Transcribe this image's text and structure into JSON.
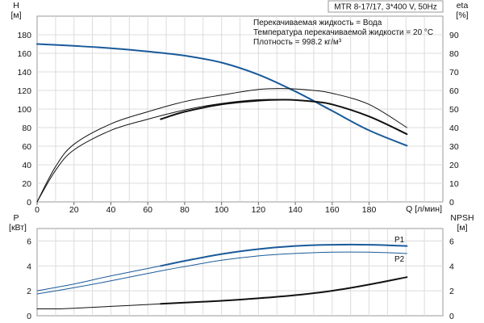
{
  "chart_data": [
    {
      "type": "line",
      "title": "MTR 8-17/17, 3*400 V, 50Hz",
      "notes": [
        "Перекачиваемая жидкость = Вода",
        "Температура перекачиваемой жидкости = 20 °C",
        "Плотность = 998.2 кг/м³"
      ],
      "xlabel": "Q [л/мин]",
      "xlim": [
        0,
        220
      ],
      "xticks": [
        "0",
        "20",
        "40",
        "60",
        "80",
        "100",
        "120",
        "140",
        "160",
        "180"
      ],
      "ylabel_left": [
        "H",
        "[м]"
      ],
      "ylim_left": [
        0,
        200
      ],
      "yticks_left": [
        "0",
        "20",
        "40",
        "60",
        "80",
        "100",
        "120",
        "140",
        "160",
        "180"
      ],
      "ylabel_right": [
        "eta",
        "[%]"
      ],
      "ylim_right": [
        0,
        100
      ],
      "yticks_right": [
        "0",
        "10",
        "20",
        "30",
        "40",
        "50",
        "60",
        "70",
        "80",
        "90"
      ],
      "grid": true,
      "series": [
        {
          "axis": "left",
          "color": "#1a5a9a",
          "width": 2.0,
          "x": [
            0,
            20,
            40,
            60,
            67,
            80,
            100,
            120,
            140,
            160,
            180,
            200.5
          ],
          "y": [
            170,
            168,
            165.5,
            162,
            160.5,
            157.5,
            150,
            137,
            119,
            98,
            77,
            60.5
          ]
        },
        {
          "axis": "right",
          "color": "#111111",
          "width": 2.0,
          "x": [
            67,
            80,
            100,
            120,
            135,
            150,
            160,
            180,
            200.5
          ],
          "y": [
            44.5,
            48.5,
            52.5,
            54.5,
            55,
            54,
            52.5,
            46,
            36.5
          ]
        },
        {
          "axis": "right",
          "color": "#111111",
          "width": 1.0,
          "x": [
            0,
            10,
            20,
            40,
            60,
            80,
            100,
            120,
            135,
            150,
            160,
            180,
            200.5
          ],
          "y": [
            0,
            19,
            31,
            42,
            48.5,
            54,
            57.5,
            60.5,
            61,
            60,
            58.5,
            52.5,
            40
          ]
        },
        {
          "axis": "right",
          "color": "#111111",
          "width": 1.0,
          "x": [
            0,
            10,
            20,
            40,
            60,
            80,
            100,
            120,
            135,
            150,
            160,
            180,
            200.5
          ],
          "y": [
            0,
            17,
            28,
            38.5,
            44.5,
            49.5,
            53,
            55,
            55,
            54,
            52.5,
            46,
            36.5
          ]
        }
      ]
    },
    {
      "type": "line",
      "xlim": [
        0,
        220
      ],
      "ylabel_left": [
        "P",
        "[кВт]"
      ],
      "ylim_left": [
        0,
        7
      ],
      "yticks_left": [
        "0",
        "2",
        "4",
        "6"
      ],
      "ylabel_right": [
        "NPSH",
        "[м]"
      ],
      "ylim_right": [
        0,
        7
      ],
      "yticks_right": [
        "0",
        "2",
        "4",
        "6"
      ],
      "grid": true,
      "series": [
        {
          "name": "P1",
          "axis": "left",
          "color": "#1a5a9a",
          "width": 1.0,
          "x": [
            0,
            20,
            40,
            67,
            80,
            100,
            120,
            140,
            160,
            180,
            200.5
          ],
          "y": [
            2.0,
            2.55,
            3.2,
            4.0,
            4.4,
            4.95,
            5.35,
            5.6,
            5.7,
            5.7,
            5.6
          ]
        },
        {
          "name": "P1",
          "axis": "left",
          "color": "#1a5a9a",
          "width": 2.0,
          "x": [
            67,
            80,
            100,
            120,
            140,
            160,
            180,
            200.5
          ],
          "y": [
            4.0,
            4.4,
            4.95,
            5.35,
            5.6,
            5.7,
            5.7,
            5.6
          ]
        },
        {
          "name": "P2",
          "axis": "left",
          "color": "#1a5a9a",
          "width": 1.0,
          "x": [
            0,
            20,
            40,
            67,
            80,
            100,
            120,
            140,
            160,
            180,
            200.5
          ],
          "y": [
            1.75,
            2.25,
            2.8,
            3.6,
            3.95,
            4.45,
            4.8,
            5.0,
            5.1,
            5.1,
            5.0
          ]
        },
        {
          "axis": "right",
          "color": "#111111",
          "width": 1.0,
          "x": [
            0,
            10,
            20,
            40,
            60,
            67,
            80,
            100,
            120,
            140,
            160,
            180,
            200.5
          ],
          "y": [
            0.55,
            0.55,
            0.6,
            0.75,
            0.9,
            0.95,
            1.05,
            1.2,
            1.4,
            1.65,
            2.0,
            2.5,
            3.1
          ]
        },
        {
          "axis": "right",
          "color": "#111111",
          "width": 2.0,
          "x": [
            67,
            80,
            100,
            120,
            140,
            160,
            180,
            200.5
          ],
          "y": [
            0.95,
            1.05,
            1.2,
            1.4,
            1.65,
            2.0,
            2.5,
            3.1
          ]
        }
      ]
    }
  ]
}
